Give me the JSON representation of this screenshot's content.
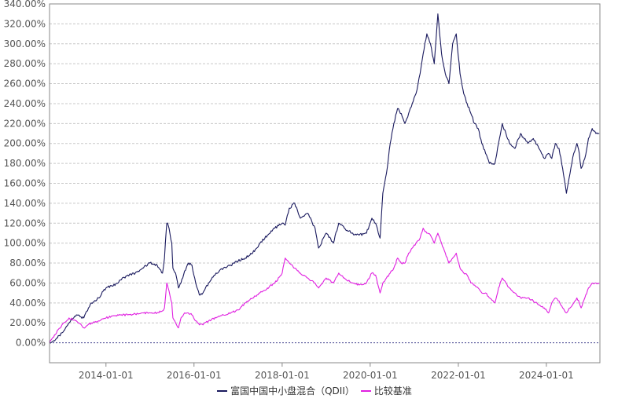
{
  "chart_data": {
    "type": "line",
    "title": "",
    "xlabel": "",
    "ylabel": "",
    "y_format": "percent-2dp",
    "ylim": [
      -20,
      340
    ],
    "y_ticks": [
      0,
      20,
      40,
      60,
      80,
      100,
      120,
      140,
      160,
      180,
      200,
      220,
      240,
      260,
      280,
      300,
      320,
      340
    ],
    "y_tick_labels": [
      "0.00%",
      "20.00%",
      "40.00%",
      "60.00%",
      "80.00%",
      "100.00%",
      "120.00%",
      "140.00%",
      "160.00%",
      "180.00%",
      "200.00%",
      "220.00%",
      "240.00%",
      "260.00%",
      "280.00%",
      "300.00%",
      "320.00%",
      "340.00%"
    ],
    "x_range": [
      "2012-09-20",
      "2025-03-20"
    ],
    "x_ticks": [
      "2014-01-01",
      "2016-01-01",
      "2018-01-01",
      "2020-01-01",
      "2022-01-01",
      "2024-01-01"
    ],
    "grid": true,
    "legend_position": "bottom",
    "baseline": 0,
    "series": [
      {
        "name": "富国中国中小盘混合（QDII）",
        "color": "#1a1a5e",
        "x": [
          "2012-09-20",
          "2012-11-01",
          "2013-01-01",
          "2013-03-01",
          "2013-05-01",
          "2013-07-01",
          "2013-09-01",
          "2013-11-01",
          "2014-01-01",
          "2014-03-01",
          "2014-05-01",
          "2014-07-01",
          "2014-09-01",
          "2014-11-01",
          "2015-01-01",
          "2015-03-01",
          "2015-04-15",
          "2015-05-01",
          "2015-05-20",
          "2015-06-01",
          "2015-07-01",
          "2015-07-10",
          "2015-08-01",
          "2015-08-25",
          "2015-09-15",
          "2015-10-15",
          "2015-11-15",
          "2015-12-15",
          "2016-01-15",
          "2016-02-15",
          "2016-03-15",
          "2016-05-01",
          "2016-07-01",
          "2016-09-01",
          "2016-11-01",
          "2017-01-01",
          "2017-03-01",
          "2017-05-01",
          "2017-07-01",
          "2017-09-01",
          "2017-11-01",
          "2018-01-01",
          "2018-01-26",
          "2018-03-01",
          "2018-04-15",
          "2018-06-01",
          "2018-08-01",
          "2018-10-01",
          "2018-10-30",
          "2019-01-01",
          "2019-03-01",
          "2019-04-15",
          "2019-06-01",
          "2019-08-01",
          "2019-10-01",
          "2019-12-01",
          "2020-01-15",
          "2020-02-15",
          "2020-03-23",
          "2020-04-15",
          "2020-05-15",
          "2020-06-15",
          "2020-07-15",
          "2020-08-15",
          "2020-09-15",
          "2020-10-15",
          "2020-11-15",
          "2020-12-15",
          "2021-01-15",
          "2021-02-18",
          "2021-03-15",
          "2021-04-15",
          "2021-05-15",
          "2021-06-15",
          "2021-07-15",
          "2021-08-15",
          "2021-09-15",
          "2021-10-15",
          "2021-11-15",
          "2021-12-15",
          "2022-01-15",
          "2022-02-15",
          "2022-03-15",
          "2022-04-15",
          "2022-05-15",
          "2022-06-15",
          "2022-07-15",
          "2022-08-15",
          "2022-09-15",
          "2022-10-31",
          "2022-11-30",
          "2022-12-31",
          "2023-01-31",
          "2023-03-01",
          "2023-04-15",
          "2023-06-01",
          "2023-08-01",
          "2023-09-15",
          "2023-10-31",
          "2023-12-15",
          "2024-01-20",
          "2024-02-15",
          "2024-03-15",
          "2024-04-15",
          "2024-05-15",
          "2024-06-15",
          "2024-07-15",
          "2024-08-15",
          "2024-09-10",
          "2024-09-30",
          "2024-10-15",
          "2024-11-15",
          "2024-12-15",
          "2025-01-15",
          "2025-02-15",
          "2025-03-15"
        ],
        "values": [
          0,
          2,
          10,
          20,
          28,
          25,
          40,
          45,
          55,
          57,
          63,
          68,
          70,
          75,
          80,
          78,
          70,
          85,
          120,
          118,
          100,
          75,
          70,
          55,
          60,
          72,
          80,
          78,
          60,
          48,
          50,
          60,
          70,
          75,
          78,
          82,
          85,
          90,
          100,
          108,
          115,
          120,
          118,
          135,
          140,
          125,
          130,
          115,
          95,
          110,
          100,
          120,
          115,
          110,
          108,
          110,
          125,
          120,
          105,
          150,
          170,
          200,
          220,
          235,
          230,
          220,
          230,
          240,
          250,
          270,
          290,
          310,
          300,
          280,
          330,
          290,
          270,
          260,
          300,
          310,
          270,
          250,
          240,
          230,
          220,
          215,
          200,
          190,
          180,
          180,
          200,
          220,
          210,
          200,
          195,
          210,
          200,
          205,
          195,
          185,
          190,
          185,
          200,
          195,
          175,
          150,
          170,
          190,
          200,
          190,
          175,
          185,
          205,
          215,
          210,
          210
        ]
      },
      {
        "name": "比较基准",
        "color": "#e020e0",
        "x": [
          "2012-09-20",
          "2012-11-01",
          "2013-01-01",
          "2013-03-01",
          "2013-05-01",
          "2013-07-01",
          "2013-09-01",
          "2013-11-01",
          "2014-01-01",
          "2014-03-01",
          "2014-05-01",
          "2014-07-01",
          "2014-09-01",
          "2014-11-01",
          "2015-01-01",
          "2015-03-01",
          "2015-04-15",
          "2015-05-01",
          "2015-05-20",
          "2015-06-01",
          "2015-07-01",
          "2015-07-10",
          "2015-08-01",
          "2015-08-25",
          "2015-09-15",
          "2015-10-15",
          "2015-11-15",
          "2015-12-15",
          "2016-01-15",
          "2016-02-15",
          "2016-03-15",
          "2016-05-01",
          "2016-07-01",
          "2016-09-01",
          "2016-11-01",
          "2017-01-01",
          "2017-03-01",
          "2017-05-01",
          "2017-07-01",
          "2017-09-01",
          "2017-11-01",
          "2018-01-01",
          "2018-01-26",
          "2018-03-01",
          "2018-04-15",
          "2018-06-01",
          "2018-08-01",
          "2018-10-01",
          "2018-10-30",
          "2019-01-01",
          "2019-03-01",
          "2019-04-15",
          "2019-06-01",
          "2019-08-01",
          "2019-10-01",
          "2019-12-01",
          "2020-01-15",
          "2020-02-15",
          "2020-03-23",
          "2020-04-15",
          "2020-05-15",
          "2020-06-15",
          "2020-07-15",
          "2020-08-15",
          "2020-09-15",
          "2020-10-15",
          "2020-11-15",
          "2020-12-15",
          "2021-01-15",
          "2021-02-18",
          "2021-03-15",
          "2021-04-15",
          "2021-05-15",
          "2021-06-15",
          "2021-07-15",
          "2021-08-15",
          "2021-09-15",
          "2021-10-15",
          "2021-11-15",
          "2021-12-15",
          "2022-01-15",
          "2022-02-15",
          "2022-03-15",
          "2022-04-15",
          "2022-05-15",
          "2022-06-15",
          "2022-07-15",
          "2022-08-15",
          "2022-09-15",
          "2022-10-31",
          "2022-11-30",
          "2022-12-31",
          "2023-01-31",
          "2023-03-01",
          "2023-04-15",
          "2023-06-01",
          "2023-08-01",
          "2023-09-15",
          "2023-10-31",
          "2023-12-15",
          "2024-01-20",
          "2024-02-15",
          "2024-03-15",
          "2024-04-15",
          "2024-05-15",
          "2024-06-15",
          "2024-07-15",
          "2024-08-15",
          "2024-09-10",
          "2024-09-30",
          "2024-10-15",
          "2024-11-15",
          "2024-12-15",
          "2025-01-15",
          "2025-02-15",
          "2025-03-15"
        ],
        "values": [
          0,
          8,
          18,
          25,
          22,
          15,
          20,
          22,
          25,
          27,
          28,
          28,
          29,
          30,
          30,
          30,
          32,
          35,
          60,
          55,
          40,
          25,
          20,
          15,
          25,
          30,
          30,
          28,
          22,
          18,
          18,
          22,
          25,
          28,
          30,
          33,
          40,
          45,
          50,
          55,
          60,
          70,
          85,
          80,
          75,
          70,
          65,
          60,
          55,
          65,
          60,
          70,
          65,
          60,
          58,
          60,
          70,
          68,
          50,
          60,
          65,
          70,
          75,
          85,
          80,
          80,
          90,
          95,
          100,
          105,
          115,
          110,
          108,
          100,
          110,
          100,
          90,
          80,
          85,
          90,
          75,
          70,
          68,
          60,
          58,
          55,
          50,
          50,
          45,
          40,
          55,
          65,
          60,
          55,
          50,
          45,
          45,
          42,
          38,
          35,
          30,
          40,
          45,
          42,
          35,
          30,
          35,
          40,
          45,
          40,
          35,
          45,
          55,
          60,
          60,
          60
        ]
      }
    ]
  }
}
